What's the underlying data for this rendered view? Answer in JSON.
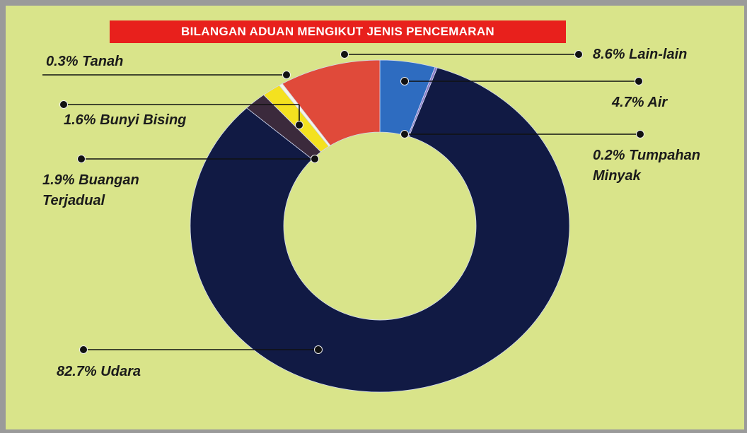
{
  "chart_data": {
    "type": "donut",
    "title": "BILANGAN ADUAN MENGIKUT JENIS PENCEMARAN",
    "categories": [
      "Air",
      "Tumpahan Minyak",
      "Udara",
      "Buangan Terjadual",
      "Bunyi Bising",
      "Tanah",
      "Lain-lain"
    ],
    "values": [
      4.7,
      0.2,
      82.7,
      1.9,
      1.6,
      0.3,
      8.6
    ],
    "value_labels": [
      "4.7%",
      "0.2%",
      "82.7%",
      "1.9%",
      "1.6%",
      "0.3%",
      "8.6%"
    ],
    "colors": [
      "#2e6cc0",
      "#8a7bc8",
      "#111a44",
      "#3b2a3c",
      "#f4e11f",
      "#f5f5e8",
      "#e04a3a"
    ]
  }
}
